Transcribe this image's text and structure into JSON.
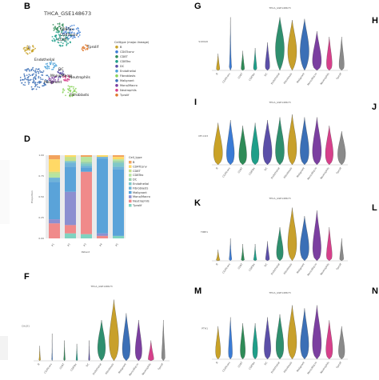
{
  "figure": {
    "panel_letters": [
      "B",
      "D",
      "F",
      "G",
      "I",
      "K",
      "M",
      "H",
      "J",
      "L",
      "N"
    ]
  },
  "panel_b": {
    "letter": "B",
    "title": "THCA_GSE148673",
    "legend_title": "Celltype (major-lineage)",
    "legend": [
      {
        "label": "B",
        "color": "#c9a227"
      },
      {
        "label": "CD4Tconv",
        "color": "#3a7bd5"
      },
      {
        "label": "CD8T",
        "color": "#2e8b57"
      },
      {
        "label": "CD8Tex",
        "color": "#1f9e89"
      },
      {
        "label": "DC",
        "color": "#5b4fa8"
      },
      {
        "label": "Endothelial",
        "color": "#4aa0d8"
      },
      {
        "label": "Fibroblasts",
        "color": "#8ad35c"
      },
      {
        "label": "Malignant",
        "color": "#3b6fb6"
      },
      {
        "label": "Mono/Macro",
        "color": "#7b3fa0"
      },
      {
        "label": "Neutrophils",
        "color": "#d6408b"
      },
      {
        "label": "Tprolif",
        "color": "#e07a2e"
      }
    ],
    "cluster_labels": [
      "CD8Tex",
      "CD4Tconv",
      "CD8T",
      "Tprolif",
      "B",
      "Endothelial",
      "DC",
      "Mono/Macro",
      "Neutrophils",
      "Malignant",
      "Fibroblasts"
    ]
  },
  "panel_d": {
    "letter": "D",
    "ylabel": "Proportion",
    "xlabel": "Patient",
    "legend_title": "Cell_type",
    "legend": [
      {
        "label": "B",
        "color": "#f2a35e"
      },
      {
        "label": "CD4Tconv",
        "color": "#ffd966"
      },
      {
        "label": "CD8T",
        "color": "#c6e08a"
      },
      {
        "label": "CD8Tex",
        "color": "#b7e4a0"
      },
      {
        "label": "DC",
        "color": "#9ad1a8"
      },
      {
        "label": "Endothelial",
        "color": "#7fc8c8"
      },
      {
        "label": "Fibroblasts",
        "color": "#6fb3d9"
      },
      {
        "label": "Malignant",
        "color": "#5aa3d9"
      },
      {
        "label": "Mono/Macro",
        "color": "#8c8fd0"
      },
      {
        "label": "Neutrophils",
        "color": "#f08a8a"
      },
      {
        "label": "Tprolif",
        "color": "#7fd3c0"
      }
    ],
    "yticks": [
      "0.00",
      "0.25",
      "0.50",
      "0.75",
      "1.00"
    ],
    "patients": [
      "P1",
      "P2",
      "P3",
      "P4",
      "P5"
    ]
  },
  "violin_panels": [
    {
      "letter": "F",
      "title": "THCA_GSE148673",
      "ylabel": "CALD1",
      "density": "medium"
    },
    {
      "letter": "G",
      "title": "THCA_GSE148673",
      "ylabel": "S100A6",
      "density": "high"
    },
    {
      "letter": "I",
      "title": "THCA_GSE148673",
      "ylabel": "MT-CO3",
      "density": "uniform"
    },
    {
      "letter": "K",
      "title": "THCA_GSE148673",
      "ylabel": "TIMP1",
      "density": "medium"
    },
    {
      "letter": "M",
      "title": "THCA_GSE148673",
      "ylabel": "PTH1",
      "density": "uniform"
    }
  ],
  "celltypes": [
    "B",
    "CD4Tconv",
    "CD8T",
    "CD8Tex",
    "DC",
    "Endothelial",
    "Fibroblasts",
    "Malignant",
    "Mono/Macro",
    "Neutrophils",
    "Tprolif"
  ],
  "violin_colors": [
    "#c9a227",
    "#3a7bd5",
    "#2e8b57",
    "#1f9e89",
    "#5b4fa8",
    "#2f8f6e",
    "#c8a02b",
    "#3b6fb6",
    "#7b3fa0",
    "#d6408b",
    "#8a8a8a"
  ]
}
